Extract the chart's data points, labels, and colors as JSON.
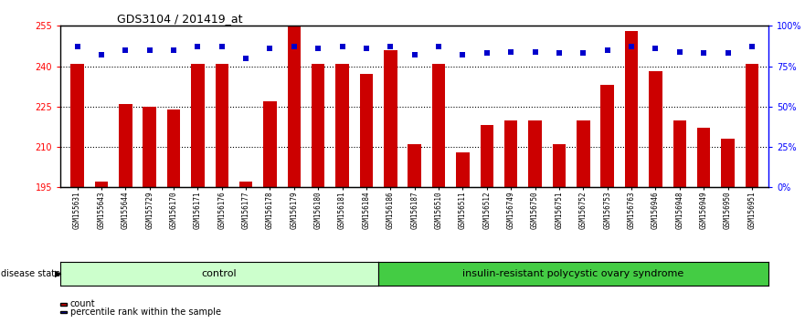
{
  "title": "GDS3104 / 201419_at",
  "samples": [
    "GSM155631",
    "GSM155643",
    "GSM155644",
    "GSM155729",
    "GSM156170",
    "GSM156171",
    "GSM156176",
    "GSM156177",
    "GSM156178",
    "GSM156179",
    "GSM156180",
    "GSM156181",
    "GSM156184",
    "GSM156186",
    "GSM156187",
    "GSM156510",
    "GSM156511",
    "GSM156512",
    "GSM156749",
    "GSM156750",
    "GSM156751",
    "GSM156752",
    "GSM156753",
    "GSM156763",
    "GSM156946",
    "GSM156948",
    "GSM156949",
    "GSM156950",
    "GSM156951"
  ],
  "bar_values": [
    241,
    197,
    226,
    225,
    224,
    241,
    241,
    197,
    227,
    255,
    241,
    241,
    237,
    246,
    211,
    241,
    208,
    218,
    220,
    220,
    211,
    220,
    233,
    253,
    238,
    220,
    217,
    213,
    241
  ],
  "percentile_values": [
    87,
    82,
    85,
    85,
    85,
    87,
    87,
    80,
    86,
    87,
    86,
    87,
    86,
    87,
    82,
    87,
    82,
    83,
    84,
    84,
    83,
    83,
    85,
    87,
    86,
    84,
    83,
    83,
    87
  ],
  "control_count": 13,
  "disease_count": 16,
  "ylim_left": [
    195,
    255
  ],
  "ylim_right": [
    0,
    100
  ],
  "yticks_left": [
    195,
    210,
    225,
    240,
    255
  ],
  "yticks_right": [
    0,
    25,
    50,
    75,
    100
  ],
  "bar_color": "#cc0000",
  "percentile_color": "#0000cc",
  "control_label": "control",
  "disease_label": "insulin-resistant polycystic ovary syndrome",
  "control_bg": "#ccffcc",
  "disease_bg": "#44cc44",
  "legend_count": "count",
  "legend_percentile": "percentile rank within the sample",
  "bg_color": "#ffffff",
  "plot_bg": "#ffffff"
}
